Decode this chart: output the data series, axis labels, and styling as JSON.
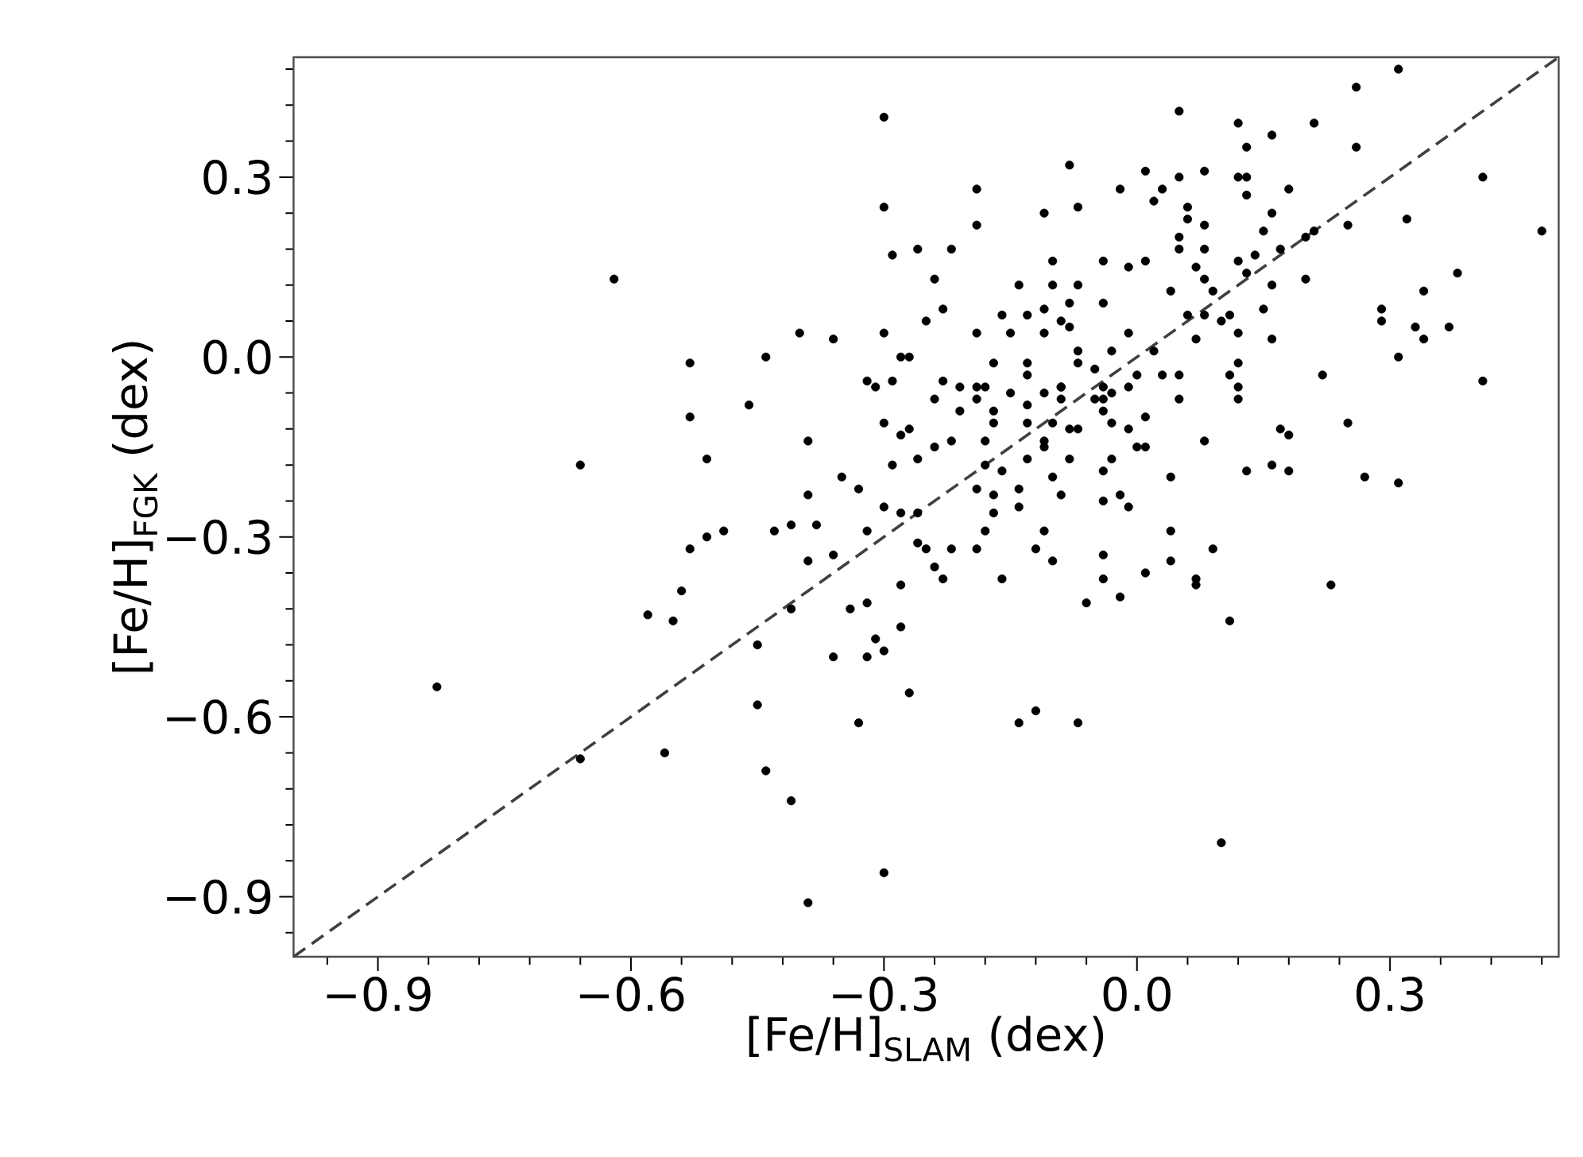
{
  "chart_data": {
    "type": "scatter",
    "xlabel": "[Fe/H]$_{SLAM}$ (dex)",
    "ylabel": "[Fe/H]$_{FGK}$ (dex)",
    "xlim": [
      -1.0,
      0.5
    ],
    "ylim": [
      -1.0,
      0.5
    ],
    "xticks": [
      {
        "value": -0.96,
        "label": null
      },
      {
        "value": -0.9,
        "label": "−0.9"
      },
      {
        "value": -0.84,
        "label": null
      },
      {
        "value": -0.78,
        "label": null
      },
      {
        "value": -0.72,
        "label": null
      },
      {
        "value": -0.66,
        "label": null
      },
      {
        "value": -0.6,
        "label": "−0.6"
      },
      {
        "value": -0.54,
        "label": null
      },
      {
        "value": -0.48,
        "label": null
      },
      {
        "value": -0.42,
        "label": null
      },
      {
        "value": -0.36,
        "label": null
      },
      {
        "value": -0.3,
        "label": "−0.3"
      },
      {
        "value": -0.24,
        "label": null
      },
      {
        "value": -0.18,
        "label": null
      },
      {
        "value": -0.12,
        "label": null
      },
      {
        "value": -0.06,
        "label": null
      },
      {
        "value": 0.0,
        "label": "0.0"
      },
      {
        "value": 0.06,
        "label": null
      },
      {
        "value": 0.12,
        "label": null
      },
      {
        "value": 0.18,
        "label": null
      },
      {
        "value": 0.24,
        "label": null
      },
      {
        "value": 0.3,
        "label": "0.3"
      },
      {
        "value": 0.36,
        "label": null
      },
      {
        "value": 0.42,
        "label": null
      },
      {
        "value": 0.48,
        "label": null
      }
    ],
    "yticks": [
      {
        "value": -0.96,
        "label": null
      },
      {
        "value": -0.9,
        "label": "−0.9"
      },
      {
        "value": -0.84,
        "label": null
      },
      {
        "value": -0.78,
        "label": null
      },
      {
        "value": -0.72,
        "label": null
      },
      {
        "value": -0.66,
        "label": null
      },
      {
        "value": -0.6,
        "label": "−0.6"
      },
      {
        "value": -0.54,
        "label": null
      },
      {
        "value": -0.48,
        "label": null
      },
      {
        "value": -0.42,
        "label": null
      },
      {
        "value": -0.36,
        "label": null
      },
      {
        "value": -0.3,
        "label": "−0.3"
      },
      {
        "value": -0.24,
        "label": null
      },
      {
        "value": -0.18,
        "label": null
      },
      {
        "value": -0.12,
        "label": null
      },
      {
        "value": -0.06,
        "label": null
      },
      {
        "value": 0.0,
        "label": "0.0"
      },
      {
        "value": 0.06,
        "label": null
      },
      {
        "value": 0.12,
        "label": null
      },
      {
        "value": 0.18,
        "label": null
      },
      {
        "value": 0.24,
        "label": null
      },
      {
        "value": 0.3,
        "label": "0.3"
      },
      {
        "value": 0.36,
        "label": null
      },
      {
        "value": 0.42,
        "label": null
      },
      {
        "value": 0.48,
        "label": null
      }
    ],
    "marker": "circle",
    "series": [
      {
        "color": "#000000",
        "x": [
          -0.3,
          -0.3,
          -0.29,
          -0.26,
          -0.62,
          -0.4,
          -0.36,
          -0.3,
          -0.53,
          -0.44,
          -0.28,
          -0.27,
          -0.32,
          -0.31,
          -0.29,
          -0.53,
          -0.46,
          -0.39,
          -0.3,
          -0.27,
          -0.28,
          -0.51,
          -0.66,
          -0.29,
          -0.35,
          -0.33,
          -0.39,
          -0.38,
          -0.41,
          -0.43,
          -0.49,
          -0.51,
          -0.53,
          -0.54,
          -0.58,
          -0.55,
          -0.39,
          -0.36,
          -0.32,
          -0.3,
          -0.28,
          -0.26,
          -0.26,
          -0.41,
          -0.45,
          -0.34,
          -0.32,
          -0.28,
          -0.28,
          -0.31,
          -0.3,
          -0.36,
          -0.32,
          -0.27,
          -0.45,
          -0.33,
          -0.83,
          -0.66,
          -0.56,
          -0.44,
          -0.41,
          -0.3,
          -0.39,
          -0.19,
          -0.17,
          -0.14,
          -0.09,
          -0.04,
          -0.02,
          -0.01,
          0.04,
          0.31,
          0.27,
          -0.14,
          -0.17,
          -0.18,
          -0.11,
          -0.25,
          -0.22,
          -0.19,
          -0.12,
          -0.24,
          -0.23,
          -0.16,
          -0.1,
          -0.04,
          -0.04,
          -0.02,
          -0.06,
          0.01,
          0.04,
          0.04,
          0.07,
          0.07,
          0.09,
          0.11,
          0.23,
          -0.14,
          -0.12,
          -0.07,
          0.1,
          0.31,
          0.26,
          0.05,
          0.12,
          0.16,
          0.21,
          0.13,
          0.26,
          -0.08,
          0.01,
          0.05,
          0.08,
          0.12,
          0.13,
          -0.19,
          -0.02,
          0.03,
          0.02,
          0.13,
          0.18,
          0.41,
          0.48,
          -0.07,
          -0.11,
          -0.19,
          0.06,
          0.06,
          0.05,
          0.08,
          0.08,
          0.16,
          0.15,
          0.21,
          0.2,
          0.17,
          0.14,
          0.25,
          0.32,
          0.38,
          0.34,
          0.29,
          0.29,
          0.33,
          0.34,
          0.37,
          0.31,
          0.41,
          0.22,
          0.25,
          0.17,
          0.18,
          0.13,
          0.16,
          0.18,
          0.08,
          -0.22,
          -0.24,
          -0.25,
          -0.23,
          -0.1,
          -0.04,
          -0.01,
          0.01,
          0.05,
          0.07,
          0.08,
          0.12,
          0.13,
          0.16,
          0.2,
          0.15,
          0.16,
          -0.14,
          -0.1,
          -0.07,
          -0.08,
          -0.04,
          0.04,
          0.09,
          -0.16,
          -0.13,
          -0.11,
          -0.09,
          -0.08,
          -0.11,
          -0.19,
          -0.15,
          -0.01,
          -0.03,
          0.06,
          0.08,
          0.1,
          0.11,
          0.12,
          0.07,
          0.12,
          0.11,
          0.12,
          0.12,
          0.05,
          0.05,
          0.01,
          0.0,
          0.01,
          -0.17,
          -0.13,
          -0.13,
          -0.07,
          -0.07,
          -0.09,
          -0.05,
          -0.04,
          -0.03,
          -0.01,
          0.0,
          0.02,
          0.03,
          -0.23,
          -0.21,
          -0.19,
          -0.18,
          -0.15,
          -0.13,
          -0.11,
          -0.09,
          -0.09,
          -0.24,
          -0.21,
          -0.19,
          -0.17,
          -0.17,
          -0.13,
          -0.11,
          -0.1,
          -0.08,
          -0.07,
          -0.05,
          -0.04,
          -0.04,
          -0.03,
          -0.01,
          -0.26,
          -0.24,
          -0.22,
          -0.18,
          -0.18,
          -0.16,
          -0.13,
          -0.11,
          -0.08,
          -0.03,
          -0.04,
          -0.1
        ],
        "values": [
          0.4,
          0.25,
          0.17,
          0.18,
          0.13,
          0.04,
          0.03,
          0.04,
          -0.01,
          0.0,
          0.0,
          0.0,
          -0.04,
          -0.05,
          -0.04,
          -0.1,
          -0.08,
          -0.14,
          -0.11,
          -0.12,
          -0.13,
          -0.17,
          -0.18,
          -0.18,
          -0.2,
          -0.22,
          -0.23,
          -0.28,
          -0.28,
          -0.29,
          -0.29,
          -0.3,
          -0.32,
          -0.39,
          -0.43,
          -0.44,
          -0.34,
          -0.33,
          -0.29,
          -0.25,
          -0.26,
          -0.26,
          -0.31,
          -0.42,
          -0.48,
          -0.42,
          -0.41,
          -0.38,
          -0.45,
          -0.47,
          -0.49,
          -0.5,
          -0.5,
          -0.56,
          -0.58,
          -0.61,
          -0.55,
          -0.67,
          -0.66,
          -0.69,
          -0.74,
          -0.86,
          -0.91,
          -0.22,
          -0.23,
          -0.22,
          -0.23,
          -0.24,
          -0.23,
          -0.25,
          -0.2,
          -0.21,
          -0.2,
          -0.25,
          -0.26,
          -0.29,
          -0.29,
          -0.32,
          -0.32,
          -0.32,
          -0.32,
          -0.35,
          -0.37,
          -0.37,
          -0.34,
          -0.33,
          -0.37,
          -0.4,
          -0.41,
          -0.36,
          -0.34,
          -0.29,
          -0.37,
          -0.38,
          -0.32,
          -0.44,
          -0.38,
          -0.61,
          -0.59,
          -0.61,
          -0.81,
          0.48,
          0.45,
          0.41,
          0.39,
          0.37,
          0.39,
          0.35,
          0.35,
          0.32,
          0.31,
          0.3,
          0.31,
          0.3,
          0.3,
          0.28,
          0.28,
          0.28,
          0.26,
          0.27,
          0.28,
          0.3,
          0.21,
          0.25,
          0.24,
          0.22,
          0.25,
          0.23,
          0.2,
          0.22,
          0.18,
          0.24,
          0.21,
          0.21,
          0.2,
          0.18,
          0.17,
          0.22,
          0.23,
          0.14,
          0.11,
          0.08,
          0.06,
          0.05,
          0.03,
          0.05,
          0.0,
          -0.04,
          -0.03,
          -0.11,
          -0.12,
          -0.13,
          -0.19,
          -0.18,
          -0.19,
          -0.14,
          0.18,
          0.13,
          0.06,
          0.08,
          0.16,
          0.16,
          0.15,
          0.16,
          0.18,
          0.15,
          0.13,
          0.16,
          0.14,
          0.12,
          0.13,
          0.08,
          0.03,
          0.12,
          0.12,
          0.12,
          0.09,
          0.09,
          0.11,
          0.11,
          0.07,
          0.07,
          0.08,
          0.06,
          0.05,
          0.04,
          0.04,
          0.04,
          0.04,
          0.01,
          0.07,
          0.07,
          0.06,
          0.07,
          0.04,
          0.03,
          -0.01,
          -0.03,
          -0.05,
          -0.07,
          -0.03,
          -0.07,
          -0.1,
          -0.15,
          -0.15,
          -0.01,
          -0.01,
          -0.03,
          0.01,
          -0.01,
          -0.05,
          -0.02,
          -0.05,
          -0.06,
          -0.05,
          -0.03,
          0.01,
          -0.03,
          -0.04,
          -0.05,
          -0.05,
          -0.05,
          -0.06,
          -0.08,
          -0.06,
          -0.07,
          -0.05,
          -0.07,
          -0.09,
          -0.07,
          -0.09,
          -0.11,
          -0.11,
          -0.14,
          -0.11,
          -0.12,
          -0.12,
          -0.07,
          -0.07,
          -0.09,
          -0.11,
          -0.12,
          -0.17,
          -0.15,
          -0.14,
          -0.14,
          -0.18,
          -0.19,
          -0.17,
          -0.15,
          -0.17,
          -0.17,
          -0.19,
          -0.2
        ]
      },
      {
        "type": "line",
        "color": "#404040",
        "line_style": "dashed",
        "marker": "none",
        "x": [
          -1.0,
          0.5
        ],
        "values": [
          -1.0,
          0.5
        ]
      }
    ]
  }
}
